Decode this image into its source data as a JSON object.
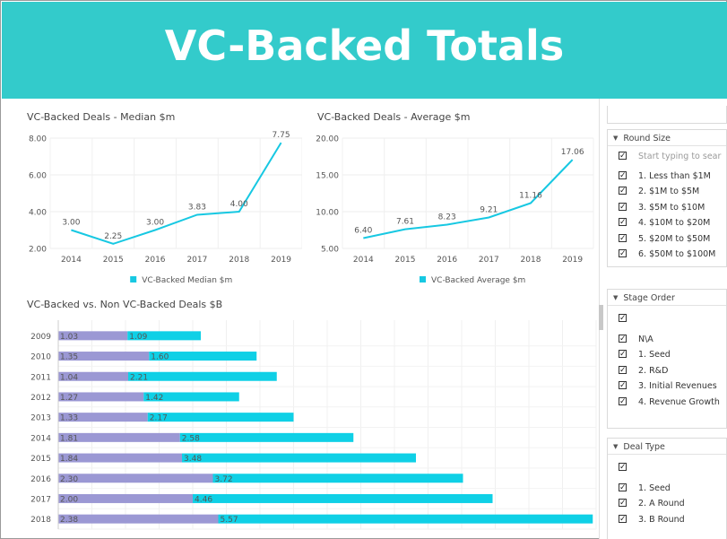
{
  "header": {
    "title": "VC-Backed Totals"
  },
  "chart_data": [
    {
      "type": "line",
      "title": "VC-Backed Deals - Median $m",
      "x": [
        "2014",
        "2015",
        "2016",
        "2017",
        "2018",
        "2019"
      ],
      "series": [
        {
          "name": "VC-Backed Median $m",
          "values": [
            3.0,
            2.25,
            3.0,
            3.83,
            4.0,
            7.75
          ],
          "labels": [
            "3.00",
            "2.25",
            "3.00",
            "3.83",
            "4.00",
            "7.75"
          ]
        }
      ],
      "ylim": [
        2,
        8
      ],
      "yticks": [
        "2.00",
        "4.00",
        "6.00",
        "8.00"
      ],
      "grid": true,
      "legend": "bottom",
      "color": "#17c8e2"
    },
    {
      "type": "line",
      "title": "VC-Backed Deals - Average $m",
      "x": [
        "2014",
        "2015",
        "2016",
        "2017",
        "2018",
        "2019"
      ],
      "series": [
        {
          "name": "VC-Backed Average $m",
          "values": [
            6.4,
            7.61,
            8.23,
            9.21,
            11.16,
            17.06
          ],
          "labels": [
            "6.40",
            "7.61",
            "8.23",
            "9.21",
            "11.16",
            "17.06"
          ]
        }
      ],
      "ylim": [
        5,
        20
      ],
      "yticks": [
        "5.00",
        "10.00",
        "15.00",
        "20.00"
      ],
      "grid": true,
      "legend": "bottom",
      "color": "#17c8e2"
    },
    {
      "type": "bar",
      "orientation": "horizontal",
      "stacked": true,
      "title": "VC-Backed vs. Non VC-Backed Deals $B",
      "categories": [
        "2009",
        "2010",
        "2011",
        "2012",
        "2013",
        "2014",
        "2015",
        "2016",
        "2017",
        "2018"
      ],
      "series": [
        {
          "values": [
            1.03,
            1.35,
            1.04,
            1.27,
            1.33,
            1.81,
            1.84,
            2.3,
            2.0,
            2.38
          ],
          "labels": [
            "1.03",
            "1.35",
            "1.04",
            "1.27",
            "1.33",
            "1.81",
            "1.84",
            "2.30",
            "2.00",
            "2.38"
          ],
          "color": "#9b98d4"
        },
        {
          "values": [
            1.09,
            1.6,
            2.21,
            1.42,
            2.17,
            2.58,
            3.48,
            3.72,
            4.46,
            5.57
          ],
          "labels": [
            "1.09",
            "1.60",
            "2.21",
            "1.42",
            "2.17",
            "2.58",
            "3.48",
            "3.72",
            "4.46",
            "5.57"
          ],
          "color": "#0fd0e6"
        }
      ],
      "xlim": [
        0,
        8.0
      ],
      "grid": true
    }
  ],
  "filters": {
    "round_size": {
      "title": "Round Size",
      "search_placeholder": "Start typing to sear",
      "items": [
        "1. Less than $1M",
        "2. $1M to $5M",
        "3. $5M to $10M",
        "4. $10M to $20M",
        "5. $20M to $50M",
        "6. $50M to $100M"
      ]
    },
    "stage_order": {
      "title": "Stage Order",
      "items": [
        "N\\A",
        "1. Seed",
        "2. R&D",
        "3. Initial Revenues",
        "4. Revenue Growth"
      ]
    },
    "deal_type": {
      "title": "Deal Type",
      "items": [
        "1. Seed",
        "2. A Round",
        "3. B Round"
      ]
    }
  }
}
